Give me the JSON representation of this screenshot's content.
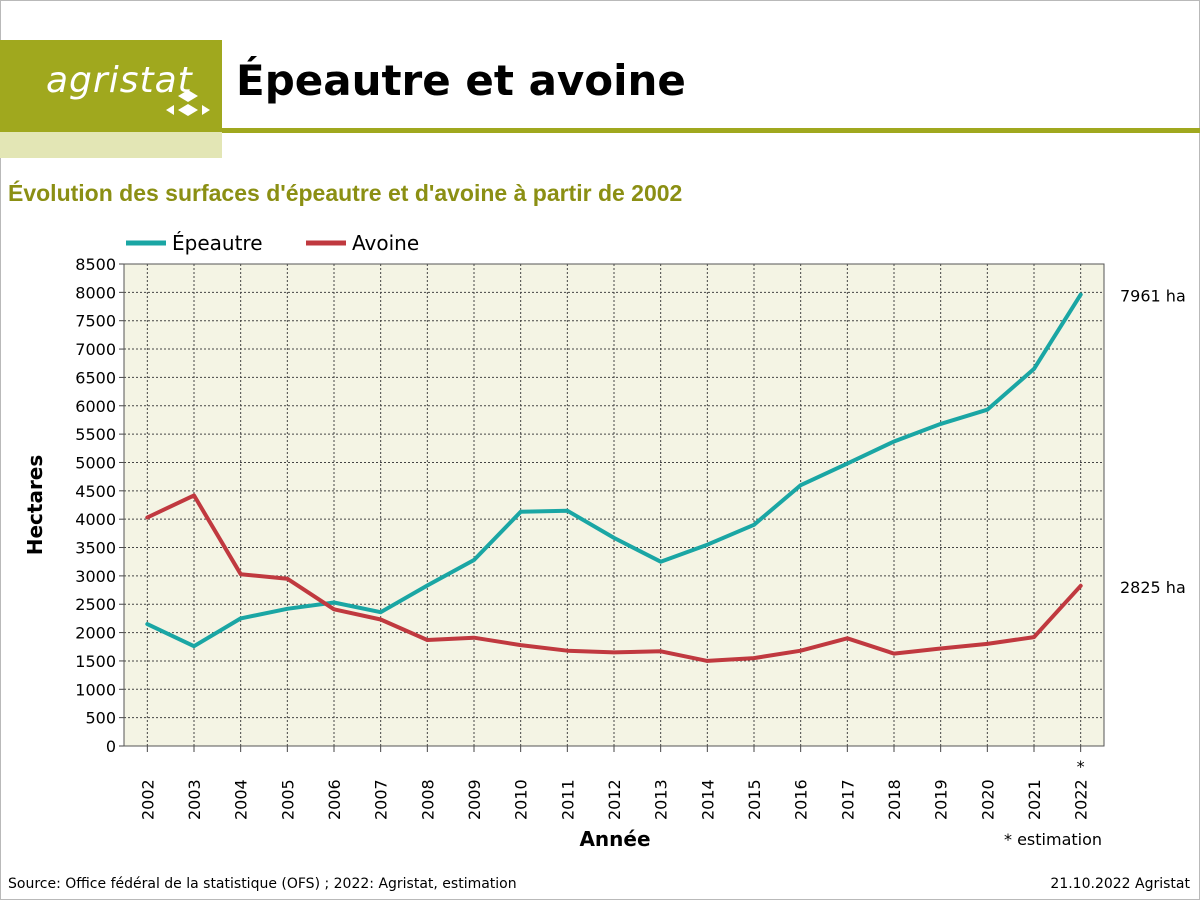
{
  "header": {
    "logo_text": "agristat",
    "title": "Épeautre et avoine",
    "subtitle": "Évolution des surfaces d'épeautre et d'avoine à partir de 2002"
  },
  "footer": {
    "source": "Source: Office fédéral de la statistique (OFS) ; 2022: Agristat, estimation",
    "date_credit": "21.10.2022 Agristat",
    "footnote": "* estimation"
  },
  "colors": {
    "brand": "#a0a81e",
    "brand_light": "#e3e6b5",
    "subtitle": "#8b8f13",
    "plot_background": "#f4f4e4",
    "epeautre": "#1aa6a4",
    "avoine": "#c0393f"
  },
  "chart_data": {
    "type": "line",
    "xlabel": "Année",
    "ylabel": "Hectares",
    "x": [
      "2002",
      "2003",
      "2004",
      "2005",
      "2006",
      "2007",
      "2008",
      "2009",
      "2010",
      "2011",
      "2012",
      "2013",
      "2014",
      "2015",
      "2016",
      "2017",
      "2018",
      "2019",
      "2020",
      "2021",
      "2022"
    ],
    "x_markers": {
      "2022": "*"
    },
    "ylim": [
      0,
      8500
    ],
    "ytick_step": 500,
    "grid": true,
    "legend_position": "top-left",
    "series": [
      {
        "name": "Épeautre",
        "color": "#1aa6a4",
        "values": [
          2150,
          1760,
          2250,
          2420,
          2530,
          2360,
          2830,
          3280,
          4130,
          4150,
          3670,
          3250,
          3550,
          3900,
          4600,
          4980,
          5370,
          5680,
          5930,
          6650,
          7961
        ],
        "end_label": "7961 ha"
      },
      {
        "name": "Avoine",
        "color": "#c0393f",
        "values": [
          4030,
          4420,
          3030,
          2950,
          2410,
          2230,
          1870,
          1910,
          1780,
          1680,
          1650,
          1670,
          1500,
          1550,
          1680,
          1900,
          1630,
          1720,
          1800,
          1920,
          2825
        ],
        "end_label": "2825 ha"
      }
    ]
  }
}
